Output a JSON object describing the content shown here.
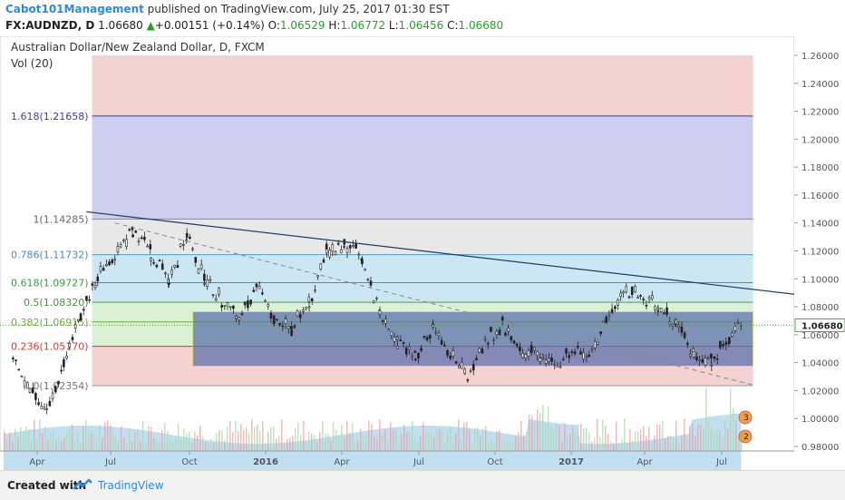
{
  "header": {
    "author": "Cabot101Management",
    "published": " published on TradingView.com, July 25, 2017 01:30 EST",
    "symbol": "FX:AUDNZD, D",
    "price": "1.06680",
    "change": "+0.00151 (+0.14%)",
    "o_label": "O:",
    "o_value": "1.06529",
    "h_label": "H:",
    "h_value": "1.06772",
    "l_label": "L:",
    "l_value": "1.06456",
    "c_label": "C:",
    "c_value": "1.06680"
  },
  "chart_title": "Australian Dollar/New Zealand Dollar, D, FXCM",
  "volume_label": "Vol (20)",
  "footer": {
    "created_with": "Created with",
    "brand": "TradingView"
  },
  "colors": {
    "fib_red": "#f5cccc",
    "fib_blue": "#c9c9f0",
    "fib_gray": "#e6e6e6",
    "fib_lightblue": "#c8e3f2",
    "fib_green": "#d7f0d2",
    "box": "#5b6eab",
    "box_border": "#c8d94a",
    "trendline": "#1f3d66",
    "volume": "#8fc4e8",
    "candle_up": "#111111",
    "candle_down": "#555555"
  },
  "chart_data": {
    "type": "candlestick",
    "price_scale": {
      "min": 0.98,
      "max": 1.26,
      "ticks": [
        "1.26000",
        "1.24000",
        "1.22000",
        "1.20000",
        "1.18000",
        "1.16000",
        "1.14000",
        "1.12000",
        "1.10000",
        "1.08000",
        "1.06000",
        "1.04000",
        "1.02000",
        "1.00000",
        "0.98000"
      ]
    },
    "x_ticks": [
      "Apr",
      "Jul",
      "Oct",
      "2016",
      "Apr",
      "Jul",
      "Oct",
      "2017",
      "Apr",
      "Jul"
    ],
    "last_price": "1.06680",
    "fib_levels": [
      {
        "ratio": "1.618",
        "price": 1.21658,
        "label": "1.618(1.21658)"
      },
      {
        "ratio": "1",
        "price": 1.14285,
        "label": "1(1.14285)"
      },
      {
        "ratio": "0.786",
        "price": 1.11732,
        "label": "0.786(1.11732)"
      },
      {
        "ratio": "0.618",
        "price": 1.09727,
        "label": "0.618(1.09727)"
      },
      {
        "ratio": "0.5",
        "price": 1.0832,
        "label": "0.5(1.08320)"
      },
      {
        "ratio": "0.382",
        "price": 1.06915,
        "label": "0.382(1.06915)"
      },
      {
        "ratio": "0.236",
        "price": 1.0517,
        "label": "0.236(1.05170)"
      },
      {
        "ratio": "0",
        "price": 1.02354,
        "label": "0(1.02354)"
      }
    ],
    "price_path": [
      {
        "date": "2015-03-02",
        "price": 1.048
      },
      {
        "date": "2015-03-23",
        "price": 1.018
      },
      {
        "date": "2015-04-13",
        "price": 1.005
      },
      {
        "date": "2015-05-04",
        "price": 1.038
      },
      {
        "date": "2015-05-25",
        "price": 1.075
      },
      {
        "date": "2015-06-15",
        "price": 1.1
      },
      {
        "date": "2015-07-06",
        "price": 1.118
      },
      {
        "date": "2015-07-27",
        "price": 1.135
      },
      {
        "date": "2015-08-17",
        "price": 1.12
      },
      {
        "date": "2015-09-07",
        "price": 1.098
      },
      {
        "date": "2015-09-28",
        "price": 1.132
      },
      {
        "date": "2015-10-19",
        "price": 1.1
      },
      {
        "date": "2015-11-09",
        "price": 1.085
      },
      {
        "date": "2015-11-30",
        "price": 1.075
      },
      {
        "date": "2015-12-21",
        "price": 1.095
      },
      {
        "date": "2016-01-11",
        "price": 1.072
      },
      {
        "date": "2016-02-01",
        "price": 1.065
      },
      {
        "date": "2016-02-22",
        "price": 1.082
      },
      {
        "date": "2016-03-14",
        "price": 1.12
      },
      {
        "date": "2016-04-04",
        "price": 1.125
      },
      {
        "date": "2016-04-25",
        "price": 1.115
      },
      {
        "date": "2016-05-16",
        "price": 1.075
      },
      {
        "date": "2016-06-06",
        "price": 1.055
      },
      {
        "date": "2016-06-27",
        "price": 1.045
      },
      {
        "date": "2016-07-18",
        "price": 1.065
      },
      {
        "date": "2016-08-08",
        "price": 1.048
      },
      {
        "date": "2016-08-29",
        "price": 1.03
      },
      {
        "date": "2016-09-19",
        "price": 1.055
      },
      {
        "date": "2016-10-10",
        "price": 1.068
      },
      {
        "date": "2016-10-31",
        "price": 1.048
      },
      {
        "date": "2016-11-21",
        "price": 1.045
      },
      {
        "date": "2016-12-12",
        "price": 1.038
      },
      {
        "date": "2017-01-02",
        "price": 1.048
      },
      {
        "date": "2017-01-23",
        "price": 1.045
      },
      {
        "date": "2017-02-13",
        "price": 1.07
      },
      {
        "date": "2017-03-06",
        "price": 1.092
      },
      {
        "date": "2017-03-27",
        "price": 1.088
      },
      {
        "date": "2017-04-17",
        "price": 1.08
      },
      {
        "date": "2017-05-08",
        "price": 1.068
      },
      {
        "date": "2017-05-29",
        "price": 1.045
      },
      {
        "date": "2017-06-19",
        "price": 1.042
      },
      {
        "date": "2017-07-10",
        "price": 1.055
      },
      {
        "date": "2017-07-24",
        "price": 1.0668
      }
    ],
    "trendline": [
      {
        "date": "2015-06-01",
        "price": 1.148
      },
      {
        "date": "2017-09-25",
        "price": 1.089
      }
    ],
    "dashed_line": [
      {
        "date": "2015-07-06",
        "price": 1.14
      },
      {
        "date": "2017-08-07",
        "price": 1.024
      }
    ],
    "fib_start_date": "2015-06-08",
    "fib_end_date": "2017-08-07",
    "box": {
      "start_date": "2015-10-05",
      "end_date": "2017-08-07",
      "high": 1.0765,
      "low": 1.0375
    },
    "annotations": [
      "3",
      "2"
    ]
  }
}
